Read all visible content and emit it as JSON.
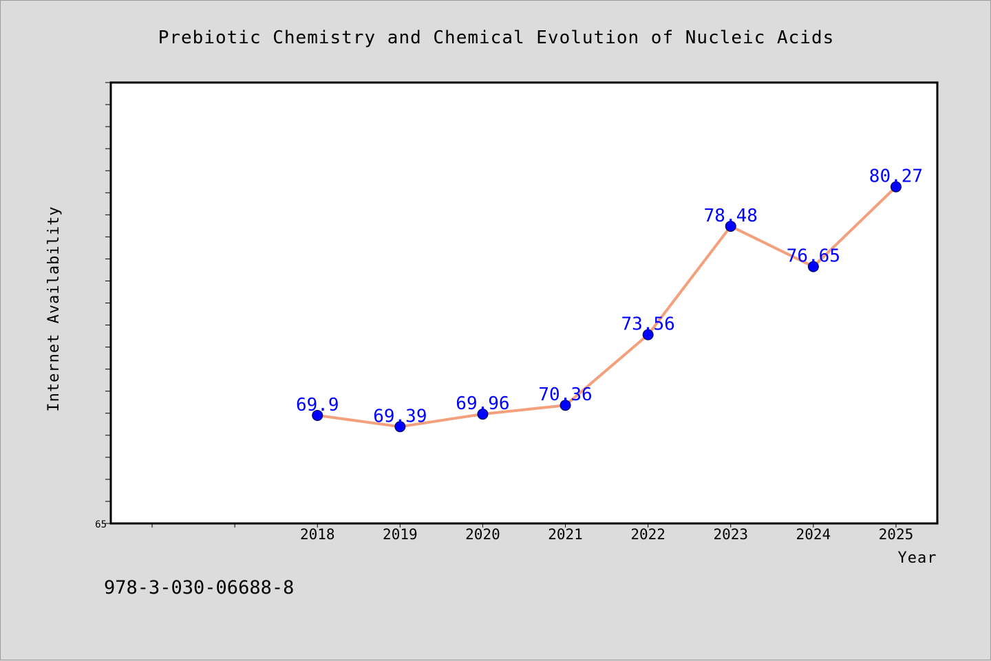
{
  "chart_data": {
    "type": "line",
    "title": "Prebiotic Chemistry and Chemical Evolution of Nucleic Acids",
    "xlabel": "Year",
    "ylabel": "Internet Availability",
    "categories": [
      "2018",
      "2019",
      "2020",
      "2021",
      "2022",
      "2023",
      "2024",
      "2025"
    ],
    "series": [
      {
        "values": [
          69.9,
          69.39,
          69.96,
          70.36,
          73.56,
          78.48,
          76.65,
          80.27
        ],
        "labels": [
          "69.9",
          "69.39",
          "69.96",
          "70.36",
          "73.56",
          "78.48",
          "76.65",
          "80.27"
        ],
        "line_color": "#f4a07c",
        "marker_color": "#0000ff"
      }
    ],
    "x_range": [
      2015.5,
      2025.5
    ],
    "ylim": [
      65,
      85
    ],
    "y_tick_labels": [
      {
        "value": 65,
        "label": "65"
      }
    ],
    "grid": false,
    "legend": "none"
  },
  "footnote": "978-3-030-06688-8"
}
